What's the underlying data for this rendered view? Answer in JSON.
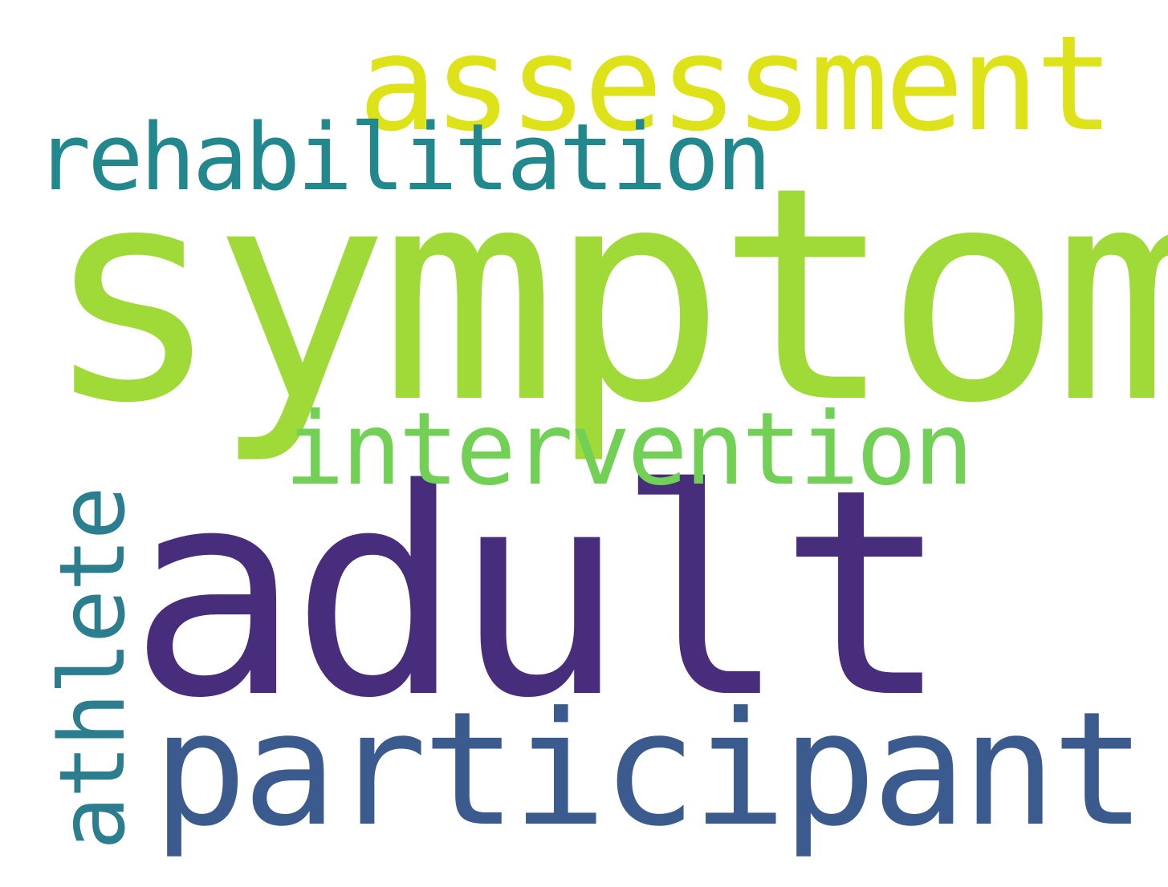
{
  "words": [
    {
      "text": "symptom",
      "color": "#a0da39"
    },
    {
      "text": "adult",
      "color": "#472d7b"
    },
    {
      "text": "assessment",
      "color": "#dde318"
    },
    {
      "text": "rehabilitation",
      "color": "#23888e"
    },
    {
      "text": "intervention",
      "color": "#73d056"
    },
    {
      "text": "participant",
      "color": "#3b5b8e"
    },
    {
      "text": "athlete",
      "color": "#2c7e8e"
    }
  ]
}
